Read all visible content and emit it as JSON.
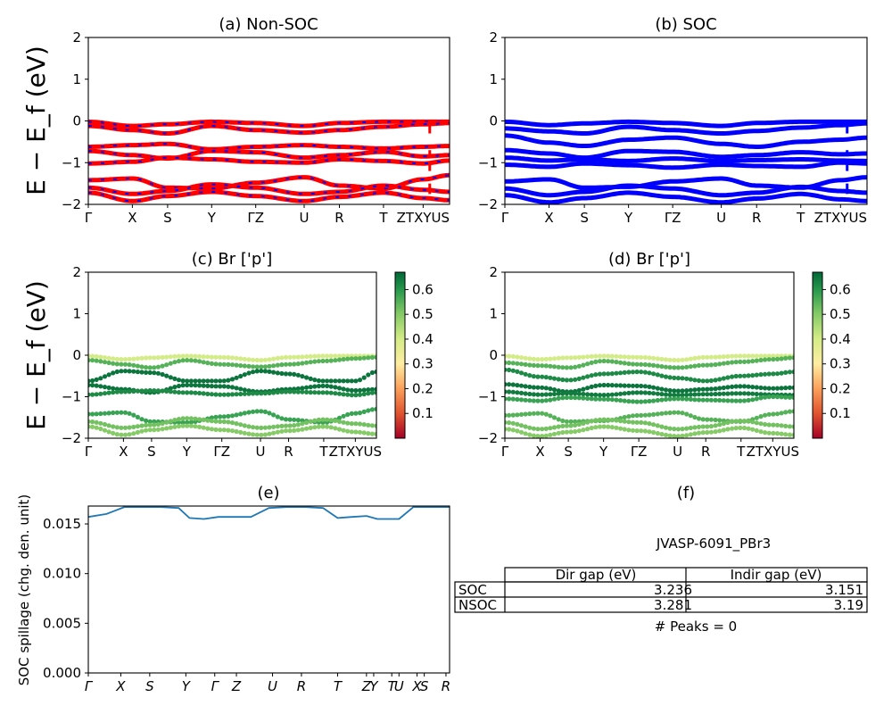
{
  "panels": {
    "a": {
      "title": "(a) Non-SOC"
    },
    "b": {
      "title": "(b) SOC"
    },
    "c": {
      "title": "(c)  Br ['p']"
    },
    "d": {
      "title": "(d) Br ['p']"
    },
    "e": {
      "title": "(e)"
    },
    "f": {
      "title": "(f)"
    }
  },
  "band_ylabel": "E − E_f (eV)",
  "spillage_ylabel": "SOC spillage (chg. den. unit)",
  "band_yticks": [
    "2",
    "1",
    "0",
    "−1",
    "−2"
  ],
  "band_xticks": [
    "Γ",
    "X",
    "S",
    "Y",
    "ΓZ",
    "U",
    "R",
    "T",
    "ZTXYUS"
  ],
  "band_xticks_ab_values": [
    0,
    1.0,
    1.8,
    2.8,
    3.8,
    4.9,
    5.7,
    6.7,
    7.6
  ],
  "band_xticks_cd_values": [
    0,
    1.0,
    1.8,
    2.8,
    3.8,
    4.9,
    5.7,
    6.7,
    7.6
  ],
  "colorbar": {
    "ticks": [
      "0.6",
      "0.5",
      "0.4",
      "0.3",
      "0.2",
      "0.1"
    ],
    "range": [
      0.0,
      0.67
    ]
  },
  "spillage": {
    "xticks": [
      "Γ",
      "X",
      "S",
      "Y",
      "Γ",
      "Z",
      "U",
      "R",
      "T",
      "Z",
      "Y",
      "T",
      "U",
      "X",
      "S",
      "R"
    ],
    "yticks": [
      "0.015",
      "0.010",
      "0.005",
      "0.000"
    ]
  },
  "table": {
    "name": "JVASP-6091_PBr3",
    "headers": [
      "",
      "Dir gap (eV)",
      "Indir gap (eV)"
    ],
    "rows": [
      [
        "SOC",
        "3.236",
        "3.151"
      ],
      [
        "NSOC",
        "3.281",
        "3.19"
      ]
    ],
    "peaks": "# Peaks = 0"
  },
  "colors": {
    "nonsoc_primary": "#ff0000",
    "nonsoc_secondary": "#0000ff",
    "soc": "#0000ff",
    "spillage_line": "#1f77b4"
  },
  "chart_data": [
    {
      "type": "line",
      "title": "(a) Non-SOC",
      "ylabel": "E − E_f (eV)",
      "ylim": [
        -2,
        2
      ],
      "x": [
        0,
        1.0,
        1.8,
        2.8,
        3.8,
        4.9,
        5.7,
        6.7,
        7.6,
        8.2
      ],
      "series": [
        {
          "values": [
            -0.02,
            -0.12,
            -0.08,
            -0.02,
            -0.05,
            -0.12,
            -0.05,
            -0.02,
            -0.02,
            -0.02
          ]
        },
        {
          "values": [
            -0.12,
            -0.22,
            -0.3,
            -0.12,
            -0.22,
            -0.28,
            -0.22,
            -0.14,
            -0.08,
            -0.05
          ]
        },
        {
          "values": [
            -0.62,
            -0.58,
            -0.55,
            -0.68,
            -0.62,
            -0.58,
            -0.62,
            -0.66,
            -0.62,
            -0.6
          ]
        },
        {
          "values": [
            -0.72,
            -0.82,
            -0.9,
            -0.72,
            -0.75,
            -0.88,
            -0.82,
            -0.74,
            -0.85,
            -0.82
          ]
        },
        {
          "values": [
            -1.02,
            -0.98,
            -0.88,
            -0.92,
            -0.98,
            -1.0,
            -0.92,
            -0.96,
            -1.02,
            -0.95
          ]
        },
        {
          "values": [
            -1.42,
            -1.38,
            -1.6,
            -1.62,
            -1.48,
            -1.35,
            -1.55,
            -1.62,
            -1.4,
            -1.3
          ]
        },
        {
          "values": [
            -1.6,
            -1.75,
            -1.68,
            -1.52,
            -1.6,
            -1.75,
            -1.7,
            -1.55,
            -1.65,
            -1.7
          ]
        },
        {
          "values": [
            -1.72,
            -1.92,
            -1.8,
            -1.7,
            -1.8,
            -1.92,
            -1.82,
            -1.72,
            -1.85,
            -1.9
          ]
        }
      ]
    },
    {
      "type": "line",
      "title": "(b) SOC",
      "ylabel": "",
      "ylim": [
        -2,
        2
      ],
      "x": [
        0,
        1.0,
        1.8,
        2.8,
        3.8,
        4.9,
        5.7,
        6.7,
        7.6,
        8.2
      ],
      "series": [
        {
          "values": [
            -0.02,
            -0.1,
            -0.06,
            -0.02,
            -0.05,
            -0.12,
            -0.05,
            -0.02,
            -0.02,
            -0.02
          ]
        },
        {
          "values": [
            -0.18,
            -0.25,
            -0.3,
            -0.14,
            -0.22,
            -0.3,
            -0.24,
            -0.16,
            -0.1,
            -0.06
          ]
        },
        {
          "values": [
            -0.35,
            -0.52,
            -0.6,
            -0.45,
            -0.4,
            -0.55,
            -0.62,
            -0.5,
            -0.45,
            -0.4
          ]
        },
        {
          "values": [
            -0.7,
            -0.78,
            -0.88,
            -0.72,
            -0.74,
            -0.86,
            -0.82,
            -0.75,
            -0.8,
            -0.78
          ]
        },
        {
          "values": [
            -0.88,
            -0.95,
            -0.92,
            -0.96,
            -0.9,
            -0.96,
            -0.94,
            -0.92,
            -0.95,
            -0.96
          ]
        },
        {
          "values": [
            -1.05,
            -1.1,
            -1.02,
            -1.06,
            -1.12,
            -1.05,
            -1.08,
            -1.1,
            -1.0,
            -1.02
          ]
        },
        {
          "values": [
            -1.45,
            -1.4,
            -1.6,
            -1.58,
            -1.45,
            -1.38,
            -1.55,
            -1.6,
            -1.42,
            -1.35
          ]
        },
        {
          "values": [
            -1.62,
            -1.78,
            -1.7,
            -1.55,
            -1.62,
            -1.78,
            -1.72,
            -1.58,
            -1.68,
            -1.72
          ]
        },
        {
          "values": [
            -1.78,
            -1.95,
            -1.85,
            -1.72,
            -1.82,
            -1.95,
            -1.86,
            -1.75,
            -1.88,
            -1.92
          ]
        }
      ]
    },
    {
      "type": "scatter",
      "title": "(c)  Br ['p']",
      "ylabel": "E − E_f (eV)",
      "ylim": [
        -2,
        2
      ],
      "colorbar_range": [
        0.0,
        0.67
      ],
      "x": [
        0,
        1.0,
        1.8,
        2.8,
        3.8,
        4.9,
        5.7,
        6.7,
        7.6,
        8.2
      ],
      "series": [
        {
          "weight": 0.4,
          "values": [
            -0.02,
            -0.1,
            -0.06,
            -0.02,
            -0.05,
            -0.12,
            -0.05,
            -0.02,
            -0.02,
            -0.02
          ]
        },
        {
          "weight": 0.55,
          "values": [
            -0.12,
            -0.22,
            -0.3,
            -0.12,
            -0.22,
            -0.28,
            -0.22,
            -0.14,
            -0.08,
            -0.05
          ]
        },
        {
          "weight": 0.65,
          "values": [
            -0.62,
            -0.38,
            -0.42,
            -0.62,
            -0.62,
            -0.38,
            -0.45,
            -0.62,
            -0.62,
            -0.4
          ]
        },
        {
          "weight": 0.65,
          "values": [
            -0.72,
            -0.82,
            -0.9,
            -0.72,
            -0.75,
            -0.88,
            -0.82,
            -0.74,
            -0.85,
            -0.82
          ]
        },
        {
          "weight": 0.62,
          "values": [
            -0.95,
            -0.88,
            -0.85,
            -0.9,
            -0.95,
            -0.92,
            -0.88,
            -0.9,
            -0.96,
            -0.9
          ]
        },
        {
          "weight": 0.58,
          "values": [
            -1.42,
            -1.38,
            -1.6,
            -1.62,
            -1.48,
            -1.35,
            -1.55,
            -1.62,
            -1.4,
            -1.3
          ]
        },
        {
          "weight": 0.52,
          "values": [
            -1.6,
            -1.75,
            -1.68,
            -1.52,
            -1.6,
            -1.75,
            -1.7,
            -1.55,
            -1.65,
            -1.7
          ]
        },
        {
          "weight": 0.5,
          "values": [
            -1.72,
            -1.92,
            -1.8,
            -1.7,
            -1.8,
            -1.92,
            -1.82,
            -1.72,
            -1.85,
            -1.9
          ]
        }
      ]
    },
    {
      "type": "scatter",
      "title": "(d) Br ['p']",
      "ylabel": "",
      "ylim": [
        -2,
        2
      ],
      "colorbar_range": [
        0.0,
        0.67
      ],
      "x": [
        0,
        1.0,
        1.8,
        2.8,
        3.8,
        4.9,
        5.7,
        6.7,
        7.6,
        8.2
      ],
      "series": [
        {
          "weight": 0.4,
          "values": [
            -0.02,
            -0.1,
            -0.06,
            -0.02,
            -0.05,
            -0.12,
            -0.05,
            -0.02,
            -0.02,
            -0.02
          ]
        },
        {
          "weight": 0.55,
          "values": [
            -0.18,
            -0.25,
            -0.3,
            -0.14,
            -0.22,
            -0.3,
            -0.24,
            -0.16,
            -0.1,
            -0.06
          ]
        },
        {
          "weight": 0.62,
          "values": [
            -0.35,
            -0.52,
            -0.6,
            -0.45,
            -0.4,
            -0.55,
            -0.62,
            -0.5,
            -0.45,
            -0.4
          ]
        },
        {
          "weight": 0.65,
          "values": [
            -0.7,
            -0.78,
            -0.88,
            -0.72,
            -0.74,
            -0.86,
            -0.82,
            -0.75,
            -0.8,
            -0.78
          ]
        },
        {
          "weight": 0.64,
          "values": [
            -0.88,
            -0.95,
            -0.92,
            -0.96,
            -0.9,
            -0.96,
            -0.94,
            -0.92,
            -0.95,
            -0.96
          ]
        },
        {
          "weight": 0.58,
          "values": [
            -1.05,
            -1.1,
            -1.02,
            -1.06,
            -1.12,
            -1.05,
            -1.08,
            -1.1,
            -1.0,
            -1.02
          ]
        },
        {
          "weight": 0.55,
          "values": [
            -1.45,
            -1.4,
            -1.6,
            -1.58,
            -1.45,
            -1.38,
            -1.55,
            -1.6,
            -1.42,
            -1.35
          ]
        },
        {
          "weight": 0.52,
          "values": [
            -1.62,
            -1.78,
            -1.7,
            -1.55,
            -1.62,
            -1.78,
            -1.72,
            -1.58,
            -1.68,
            -1.72
          ]
        },
        {
          "weight": 0.5,
          "values": [
            -1.78,
            -1.95,
            -1.85,
            -1.72,
            -1.82,
            -1.95,
            -1.86,
            -1.75,
            -1.88,
            -1.92
          ]
        }
      ]
    },
    {
      "type": "line",
      "title": "(e)",
      "ylabel": "SOC spillage (chg. den. unit)",
      "ylim": [
        0,
        0.0168
      ],
      "x": [
        0,
        0.5,
        1.0,
        1.5,
        2.0,
        2.5,
        2.8,
        3.2,
        3.6,
        4.0,
        4.5,
        5.0,
        5.5,
        6.0,
        6.5,
        6.9,
        7.3,
        7.7,
        8.0,
        8.1,
        8.6,
        9.0,
        9.5,
        10.0
      ],
      "series": [
        {
          "name": "spillage",
          "values": [
            0.0157,
            0.016,
            0.0167,
            0.0167,
            0.0167,
            0.0166,
            0.0156,
            0.0155,
            0.0157,
            0.0157,
            0.0157,
            0.0166,
            0.0167,
            0.0167,
            0.0166,
            0.0156,
            0.0157,
            0.0158,
            0.0155,
            0.0155,
            0.0155,
            0.0167,
            0.0167,
            0.0167
          ]
        }
      ]
    }
  ]
}
